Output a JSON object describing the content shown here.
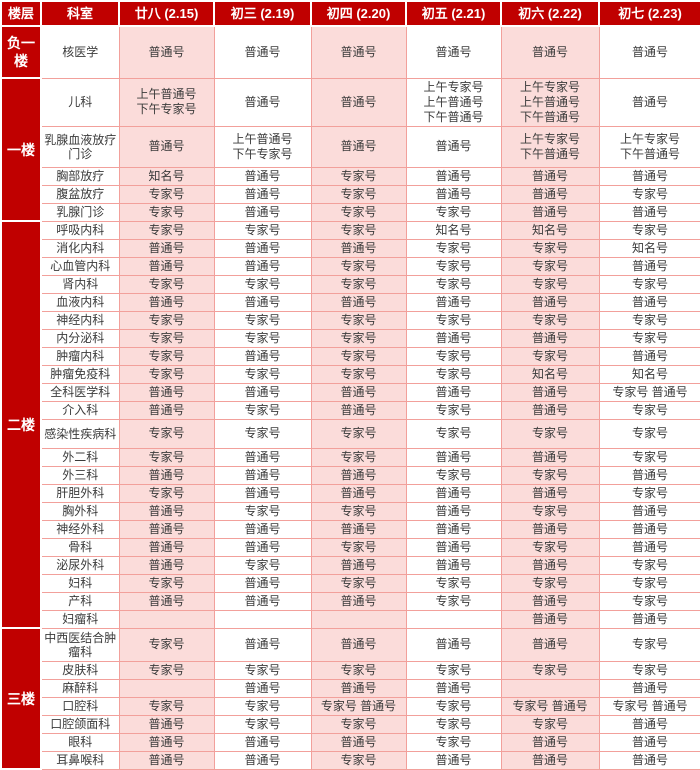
{
  "header": {
    "floor_col": "楼层",
    "dept_col": "科室",
    "dates": [
      "廿八 (2.15)",
      "初三 (2.19)",
      "初四 (2.20)",
      "初五 (2.21)",
      "初六 (2.22)",
      "初七 (2.23)"
    ]
  },
  "ticket_types": [
    "普通号",
    "专家号",
    "知名号"
  ],
  "colors": {
    "header_bg": "#c00000",
    "pink_cell": "#fbdcda",
    "border": "#f2a09b",
    "body_text": "#3b3b3b"
  },
  "floors": [
    {
      "name": "负一楼",
      "rows": [
        {
          "dept": "核医学",
          "cells": [
            "普通号",
            "普通号",
            "普通号",
            "普通号",
            "普通号",
            "普通号"
          ]
        }
      ]
    },
    {
      "name": "一楼",
      "rows": [
        {
          "dept": "儿科",
          "cells": [
            "上午普通号\n下午专家号",
            "普通号",
            "普通号",
            "上午专家号\n上午普通号\n下午普通号",
            "上午专家号\n上午普通号\n下午普通号",
            "普通号"
          ]
        },
        {
          "dept": "乳腺血液放疗门诊",
          "cells": [
            "普通号",
            "上午普通号\n下午专家号",
            "普通号",
            "普通号",
            "上午专家号\n下午普通号",
            "上午专家号\n下午普通号"
          ]
        },
        {
          "dept": "胸部放疗",
          "cells": [
            "知名号",
            "普通号",
            "专家号",
            "普通号",
            "普通号",
            "普通号"
          ]
        },
        {
          "dept": "腹盆放疗",
          "cells": [
            "专家号",
            "普通号",
            "专家号",
            "普通号",
            "普通号",
            "专家号"
          ]
        },
        {
          "dept": "乳腺门诊",
          "cells": [
            "专家号",
            "普通号",
            "专家号",
            "专家号",
            "普通号",
            "普通号"
          ]
        }
      ]
    },
    {
      "name": "二楼",
      "rows": [
        {
          "dept": "呼吸内科",
          "cells": [
            "专家号",
            "专家号",
            "专家号",
            "知名号",
            "知名号",
            "专家号"
          ]
        },
        {
          "dept": "消化内科",
          "cells": [
            "普通号",
            "普通号",
            "普通号",
            "专家号",
            "专家号",
            "知名号"
          ]
        },
        {
          "dept": "心血管内科",
          "cells": [
            "普通号",
            "普通号",
            "专家号",
            "专家号",
            "专家号",
            "普通号"
          ]
        },
        {
          "dept": "肾内科",
          "cells": [
            "专家号",
            "专家号",
            "专家号",
            "专家号",
            "专家号",
            "专家号"
          ]
        },
        {
          "dept": "血液内科",
          "cells": [
            "普通号",
            "普通号",
            "普通号",
            "普通号",
            "普通号",
            "普通号"
          ]
        },
        {
          "dept": "神经内科",
          "cells": [
            "专家号",
            "专家号",
            "专家号",
            "专家号",
            "专家号",
            "专家号"
          ]
        },
        {
          "dept": "内分泌科",
          "cells": [
            "专家号",
            "专家号",
            "专家号",
            "普通号",
            "普通号",
            "专家号"
          ]
        },
        {
          "dept": "肿瘤内科",
          "cells": [
            "专家号",
            "普通号",
            "专家号",
            "专家号",
            "专家号",
            "普通号"
          ]
        },
        {
          "dept": "肿瘤免疫科",
          "cells": [
            "专家号",
            "专家号",
            "专家号",
            "专家号",
            "知名号",
            "知名号"
          ]
        },
        {
          "dept": "全科医学科",
          "cells": [
            "普通号",
            "普通号",
            "普通号",
            "普通号",
            "普通号",
            "专家号 普通号"
          ]
        },
        {
          "dept": "介入科",
          "cells": [
            "普通号",
            "专家号",
            "普通号",
            "专家号",
            "普通号",
            "专家号"
          ]
        },
        {
          "dept": "感染性疾病科",
          "cells": [
            "专家号",
            "专家号",
            "专家号",
            "专家号",
            "专家号",
            "专家号"
          ]
        },
        {
          "dept": "外二科",
          "cells": [
            "专家号",
            "普通号",
            "专家号",
            "普通号",
            "普通号",
            "专家号"
          ]
        },
        {
          "dept": "外三科",
          "cells": [
            "普通号",
            "普通号",
            "普通号",
            "专家号",
            "专家号",
            "普通号"
          ]
        },
        {
          "dept": "肝胆外科",
          "cells": [
            "专家号",
            "普通号",
            "普通号",
            "普通号",
            "普通号",
            "专家号"
          ]
        },
        {
          "dept": "胸外科",
          "cells": [
            "普通号",
            "专家号",
            "专家号",
            "普通号",
            "专家号",
            "普通号"
          ]
        },
        {
          "dept": "神经外科",
          "cells": [
            "普通号",
            "普通号",
            "普通号",
            "普通号",
            "普通号",
            "普通号"
          ]
        },
        {
          "dept": "骨科",
          "cells": [
            "普通号",
            "普通号",
            "专家号",
            "普通号",
            "专家号",
            "普通号"
          ]
        },
        {
          "dept": "泌尿外科",
          "cells": [
            "普通号",
            "专家号",
            "普通号",
            "普通号",
            "普通号",
            "专家号"
          ]
        },
        {
          "dept": "妇科",
          "cells": [
            "专家号",
            "普通号",
            "专家号",
            "专家号",
            "专家号",
            "专家号"
          ]
        },
        {
          "dept": "产科",
          "cells": [
            "普通号",
            "普通号",
            "普通号",
            "专家号",
            "普通号",
            "专家号"
          ]
        },
        {
          "dept": "妇瘤科",
          "cells": [
            "",
            "",
            "",
            "",
            "普通号",
            "普通号"
          ]
        }
      ]
    },
    {
      "name": "三楼",
      "rows": [
        {
          "dept": "中西医结合肿瘤科",
          "cells": [
            "专家号",
            "普通号",
            "普通号",
            "普通号",
            "普通号",
            "专家号"
          ]
        },
        {
          "dept": "皮肤科",
          "cells": [
            "专家号",
            "专家号",
            "专家号",
            "专家号",
            "专家号",
            "专家号"
          ]
        },
        {
          "dept": "麻醉科",
          "cells": [
            "",
            "普通号",
            "普通号",
            "普通号",
            "",
            "普通号"
          ]
        },
        {
          "dept": "口腔科",
          "cells": [
            "专家号",
            "专家号",
            "专家号 普通号",
            "专家号",
            "专家号 普通号",
            "专家号 普通号"
          ]
        },
        {
          "dept": "口腔颌面科",
          "cells": [
            "普通号",
            "专家号",
            "专家号",
            "专家号",
            "专家号",
            "普通号"
          ]
        },
        {
          "dept": "眼科",
          "cells": [
            "普通号",
            "普通号",
            "普通号",
            "专家号",
            "普通号",
            "普通号"
          ]
        },
        {
          "dept": "耳鼻喉科",
          "cells": [
            "普通号",
            "普通号",
            "专家号",
            "普通号",
            "普通号",
            "普通号"
          ]
        }
      ]
    }
  ]
}
